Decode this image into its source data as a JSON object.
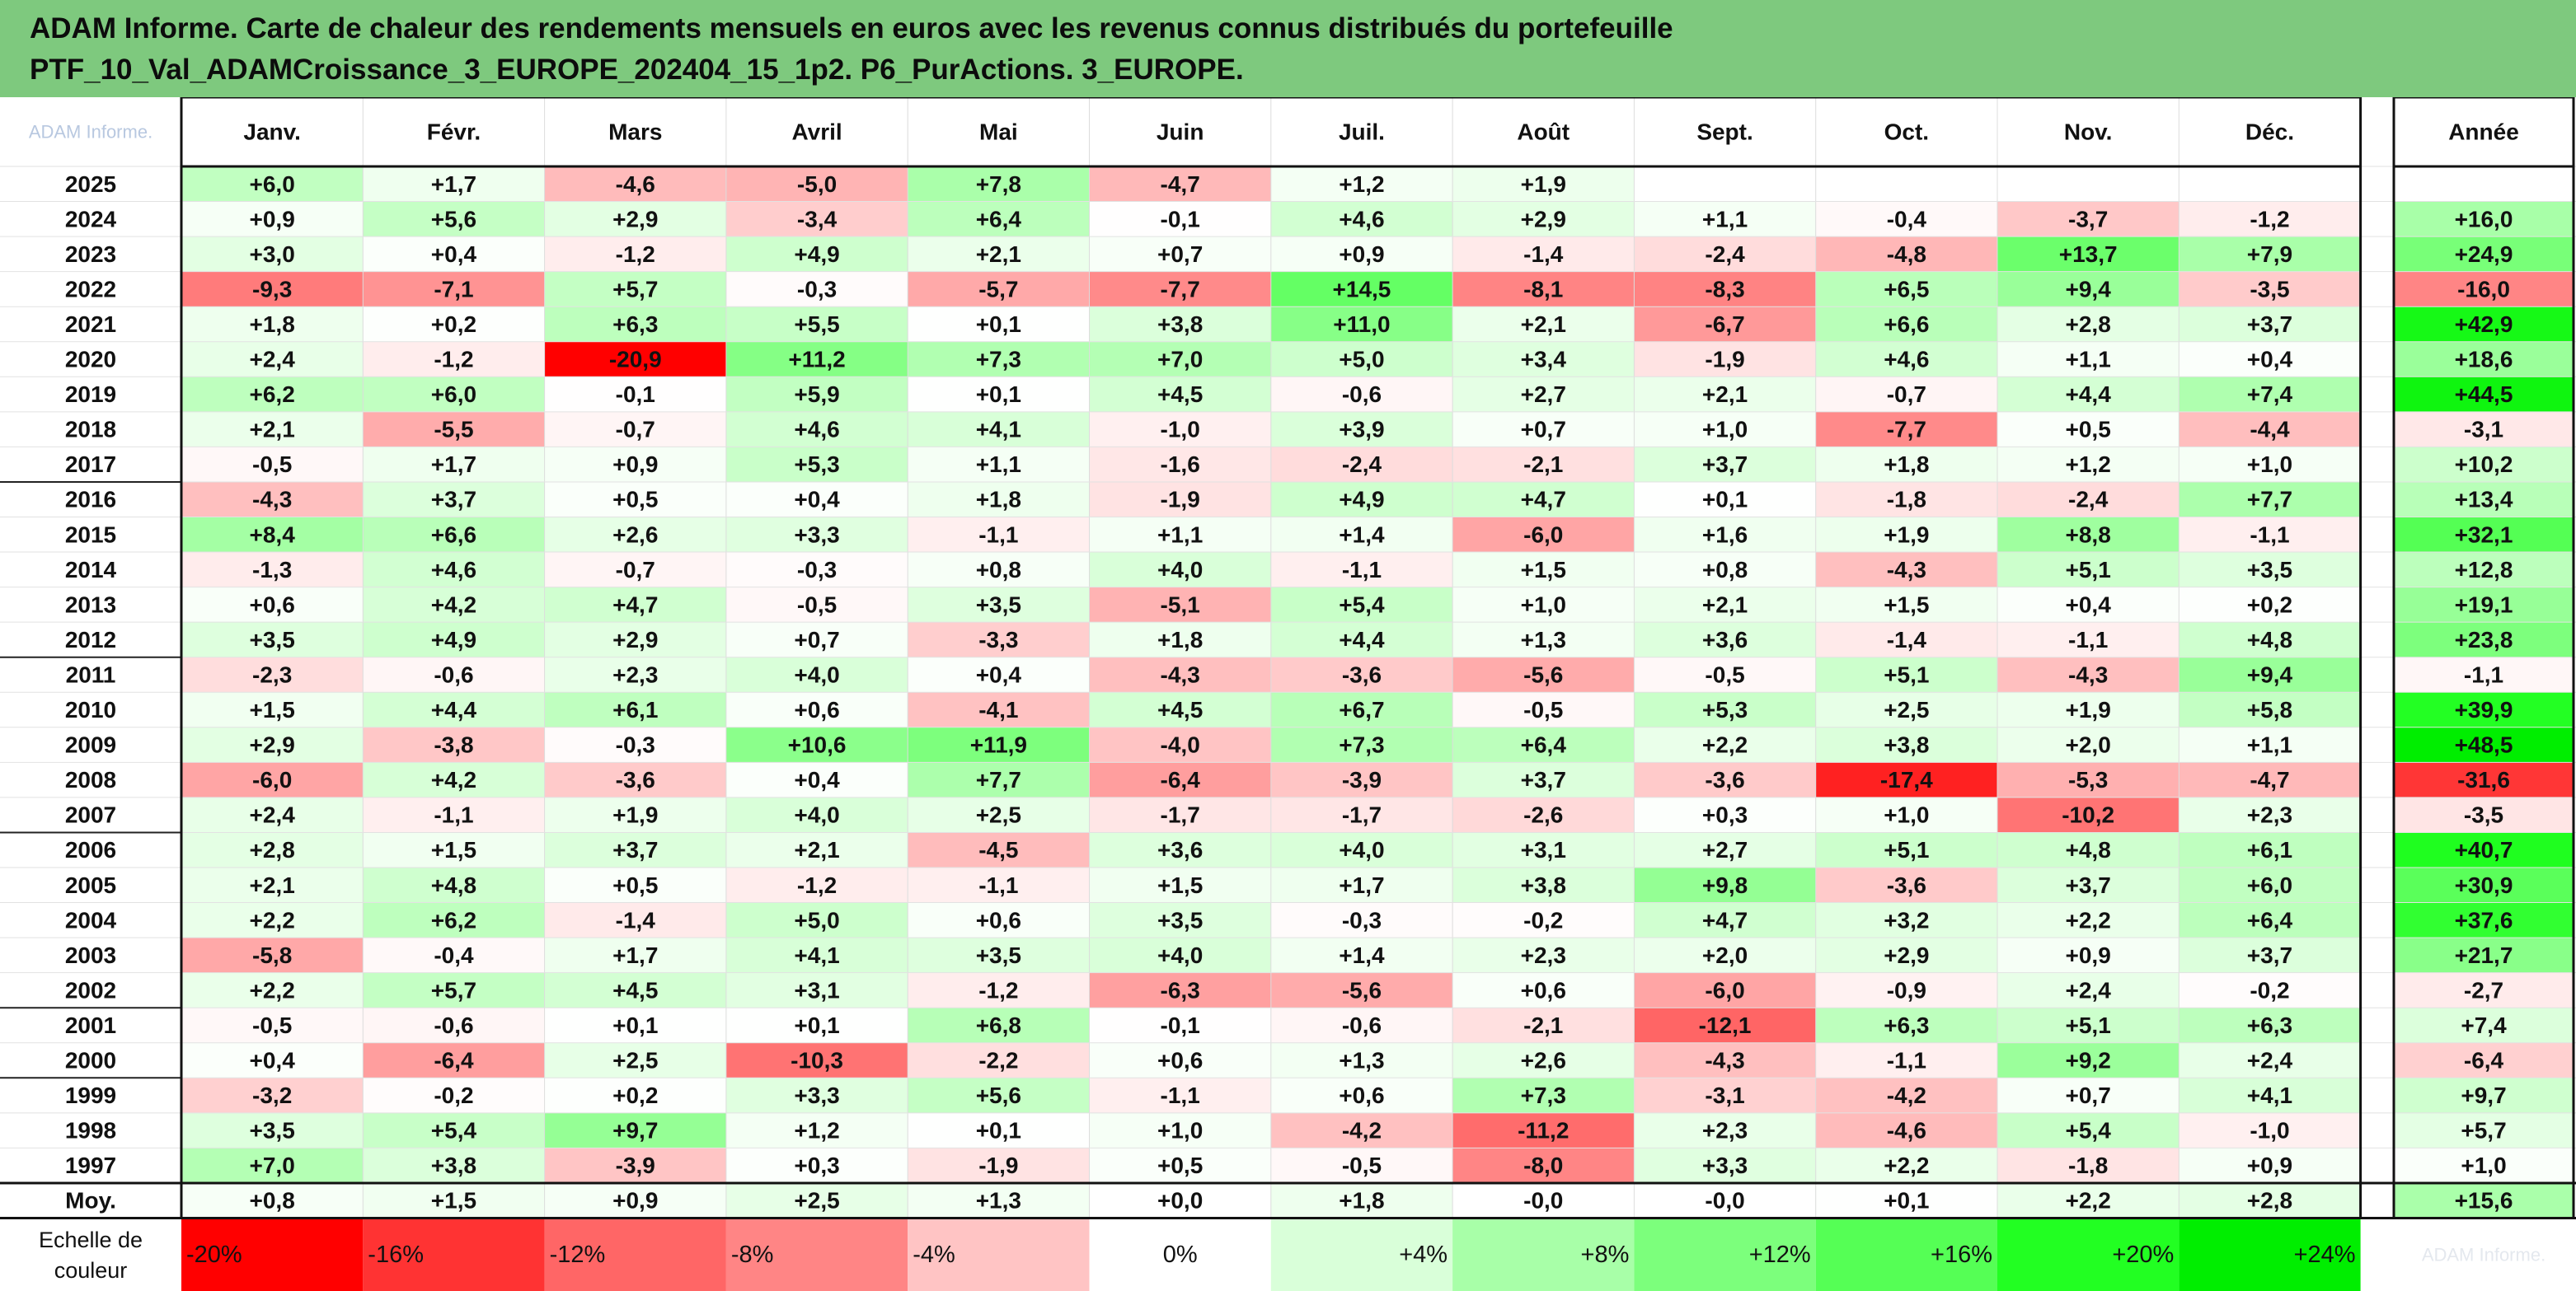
{
  "title": {
    "line1": "ADAM Informe. Carte de chaleur des rendements mensuels en euros avec les revenus connus distribués du portefeuille",
    "line2": "PTF_10_Val_ADAMCroissance_3_EUROPE_202404_15_1p2. P6_PurActions. 3_EUROPE."
  },
  "colors": {
    "banner": "#7ec97e",
    "scale": {
      "-20": "#ff0000",
      "-16": "#ff3333",
      "-12": "#ff6666",
      "-8": "#ff8585",
      "-4": "#ffc4c4",
      "0": "#ffffff",
      "4": "#d9ffd9",
      "8": "#a8ffa8",
      "12": "#7cff7c",
      "16": "#55ff55",
      "20": "#22ff22",
      "24": "#00ee00"
    }
  },
  "chart_data": {
    "type": "heatmap",
    "corner_label": "ADAM Informe.",
    "columns": [
      "Janv.",
      "Févr.",
      "Mars",
      "Avril",
      "Mai",
      "Juin",
      "Juil.",
      "Août",
      "Sept.",
      "Oct.",
      "Nov.",
      "Déc."
    ],
    "annual_label": "Année",
    "rows": [
      {
        "year": "2025",
        "months": [
          "+6,0",
          "+1,7",
          "-4,6",
          "-5,0",
          "+7,8",
          "-4,7",
          "+1,2",
          "+1,9",
          "",
          "",
          "",
          ""
        ],
        "annual": ""
      },
      {
        "year": "2024",
        "months": [
          "+0,9",
          "+5,6",
          "+2,9",
          "-3,4",
          "+6,4",
          "-0,1",
          "+4,6",
          "+2,9",
          "+1,1",
          "-0,4",
          "-3,7",
          "-1,2"
        ],
        "annual": "+16,0"
      },
      {
        "year": "2023",
        "months": [
          "+3,0",
          "+0,4",
          "-1,2",
          "+4,9",
          "+2,1",
          "+0,7",
          "+0,9",
          "-1,4",
          "-2,4",
          "-4,8",
          "+13,7",
          "+7,9"
        ],
        "annual": "+24,9"
      },
      {
        "year": "2022",
        "months": [
          "-9,3",
          "-7,1",
          "+5,7",
          "-0,3",
          "-5,7",
          "-7,7",
          "+14,5",
          "-8,1",
          "-8,3",
          "+6,5",
          "+9,4",
          "-3,5"
        ],
        "annual": "-16,0"
      },
      {
        "year": "2021",
        "months": [
          "+1,8",
          "+0,2",
          "+6,3",
          "+5,5",
          "+0,1",
          "+3,8",
          "+11,0",
          "+2,1",
          "-6,7",
          "+6,6",
          "+2,8",
          "+3,7"
        ],
        "annual": "+42,9"
      },
      {
        "year": "2020",
        "months": [
          "+2,4",
          "-1,2",
          "-20,9",
          "+11,2",
          "+7,3",
          "+7,0",
          "+5,0",
          "+3,4",
          "-1,9",
          "+4,6",
          "+1,1",
          "+0,4"
        ],
        "annual": "+18,6"
      },
      {
        "year": "2019",
        "months": [
          "+6,2",
          "+6,0",
          "-0,1",
          "+5,9",
          "+0,1",
          "+4,5",
          "-0,6",
          "+2,7",
          "+2,1",
          "-0,7",
          "+4,4",
          "+7,4"
        ],
        "annual": "+44,5"
      },
      {
        "year": "2018",
        "months": [
          "+2,1",
          "-5,5",
          "-0,7",
          "+4,6",
          "+4,1",
          "-1,0",
          "+3,9",
          "+0,7",
          "+1,0",
          "-7,7",
          "+0,5",
          "-4,4"
        ],
        "annual": "-3,1"
      },
      {
        "year": "2017",
        "months": [
          "-0,5",
          "+1,7",
          "+0,9",
          "+5,3",
          "+1,1",
          "-1,6",
          "-2,4",
          "-2,1",
          "+3,7",
          "+1,8",
          "+1,2",
          "+1,0"
        ],
        "annual": "+10,2"
      },
      {
        "year": "2016",
        "months": [
          "-4,3",
          "+3,7",
          "+0,5",
          "+0,4",
          "+1,8",
          "-1,9",
          "+4,9",
          "+4,7",
          "+0,1",
          "-1,8",
          "-2,4",
          "+7,7"
        ],
        "annual": "+13,4"
      },
      {
        "year": "2015",
        "months": [
          "+8,4",
          "+6,6",
          "+2,6",
          "+3,3",
          "-1,1",
          "+1,1",
          "+1,4",
          "-6,0",
          "+1,6",
          "+1,9",
          "+8,8",
          "-1,1"
        ],
        "annual": "+32,1"
      },
      {
        "year": "2014",
        "months": [
          "-1,3",
          "+4,6",
          "-0,7",
          "-0,3",
          "+0,8",
          "+4,0",
          "-1,1",
          "+1,5",
          "+0,8",
          "-4,3",
          "+5,1",
          "+3,5"
        ],
        "annual": "+12,8"
      },
      {
        "year": "2013",
        "months": [
          "+0,6",
          "+4,2",
          "+4,7",
          "-0,5",
          "+3,5",
          "-5,1",
          "+5,4",
          "+1,0",
          "+2,1",
          "+1,5",
          "+0,4",
          "+0,2"
        ],
        "annual": "+19,1"
      },
      {
        "year": "2012",
        "months": [
          "+3,5",
          "+4,9",
          "+2,9",
          "+0,7",
          "-3,3",
          "+1,8",
          "+4,4",
          "+1,3",
          "+3,6",
          "-1,4",
          "-1,1",
          "+4,8"
        ],
        "annual": "+23,8"
      },
      {
        "year": "2011",
        "months": [
          "-2,3",
          "-0,6",
          "+2,3",
          "+4,0",
          "+0,4",
          "-4,3",
          "-3,6",
          "-5,6",
          "-0,5",
          "+5,1",
          "-4,3",
          "+9,4"
        ],
        "annual": "-1,1"
      },
      {
        "year": "2010",
        "months": [
          "+1,5",
          "+4,4",
          "+6,1",
          "+0,6",
          "-4,1",
          "+4,5",
          "+6,7",
          "-0,5",
          "+5,3",
          "+2,5",
          "+1,9",
          "+5,8"
        ],
        "annual": "+39,9"
      },
      {
        "year": "2009",
        "months": [
          "+2,9",
          "-3,8",
          "-0,3",
          "+10,6",
          "+11,9",
          "-4,0",
          "+7,3",
          "+6,4",
          "+2,2",
          "+3,8",
          "+2,0",
          "+1,1"
        ],
        "annual": "+48,5"
      },
      {
        "year": "2008",
        "months": [
          "-6,0",
          "+4,2",
          "-3,6",
          "+0,4",
          "+7,7",
          "-6,4",
          "-3,9",
          "+3,7",
          "-3,6",
          "-17,4",
          "-5,3",
          "-4,7"
        ],
        "annual": "-31,6"
      },
      {
        "year": "2007",
        "months": [
          "+2,4",
          "-1,1",
          "+1,9",
          "+4,0",
          "+2,5",
          "-1,7",
          "-1,7",
          "-2,6",
          "+0,3",
          "+1,0",
          "-10,2",
          "+2,3"
        ],
        "annual": "-3,5"
      },
      {
        "year": "2006",
        "months": [
          "+2,8",
          "+1,5",
          "+3,7",
          "+2,1",
          "-4,5",
          "+3,6",
          "+4,0",
          "+3,1",
          "+2,7",
          "+5,1",
          "+4,8",
          "+6,1"
        ],
        "annual": "+40,7"
      },
      {
        "year": "2005",
        "months": [
          "+2,1",
          "+4,8",
          "+0,5",
          "-1,2",
          "-1,1",
          "+1,5",
          "+1,7",
          "+3,8",
          "+9,8",
          "-3,6",
          "+3,7",
          "+6,0"
        ],
        "annual": "+30,9"
      },
      {
        "year": "2004",
        "months": [
          "+2,2",
          "+6,2",
          "-1,4",
          "+5,0",
          "+0,6",
          "+3,5",
          "-0,3",
          "-0,2",
          "+4,7",
          "+3,2",
          "+2,2",
          "+6,4"
        ],
        "annual": "+37,6"
      },
      {
        "year": "2003",
        "months": [
          "-5,8",
          "-0,4",
          "+1,7",
          "+4,1",
          "+3,5",
          "+4,0",
          "+1,4",
          "+2,3",
          "+2,0",
          "+2,9",
          "+0,9",
          "+3,7"
        ],
        "annual": "+21,7"
      },
      {
        "year": "2002",
        "months": [
          "+2,2",
          "+5,7",
          "+4,5",
          "+3,1",
          "-1,2",
          "-6,3",
          "-5,6",
          "+0,6",
          "-6,0",
          "-0,9",
          "+2,4",
          "-0,2"
        ],
        "annual": "-2,7"
      },
      {
        "year": "2001",
        "months": [
          "-0,5",
          "-0,6",
          "+0,1",
          "+0,1",
          "+6,8",
          "-0,1",
          "-0,6",
          "-2,1",
          "-12,1",
          "+6,3",
          "+5,1",
          "+6,3"
        ],
        "annual": "+7,4"
      },
      {
        "year": "2000",
        "months": [
          "+0,4",
          "-6,4",
          "+2,5",
          "-10,3",
          "-2,2",
          "+0,6",
          "+1,3",
          "+2,6",
          "-4,3",
          "-1,1",
          "+9,2",
          "+2,4"
        ],
        "annual": "-6,4"
      },
      {
        "year": "1999",
        "months": [
          "-3,2",
          "-0,2",
          "+0,2",
          "+3,3",
          "+5,6",
          "-1,1",
          "+0,6",
          "+7,3",
          "-3,1",
          "-4,2",
          "+0,7",
          "+4,1"
        ],
        "annual": "+9,7"
      },
      {
        "year": "1998",
        "months": [
          "+3,5",
          "+5,4",
          "+9,7",
          "+1,2",
          "+0,1",
          "+1,0",
          "-4,2",
          "-11,2",
          "+2,3",
          "-4,6",
          "+5,4",
          "-1,0"
        ],
        "annual": "+5,7"
      },
      {
        "year": "1997",
        "months": [
          "+7,0",
          "+3,8",
          "-3,9",
          "+0,3",
          "-1,9",
          "+0,5",
          "-0,5",
          "-8,0",
          "+3,3",
          "+2,2",
          "-1,8",
          "+0,9"
        ],
        "annual": "+1,0"
      }
    ],
    "average": {
      "label": "Moy.",
      "months": [
        "+0,8",
        "+1,5",
        "+0,9",
        "+2,5",
        "+1,3",
        "+0,0",
        "+1,8",
        "-0,0",
        "-0,0",
        "+0,1",
        "+2,2",
        "+2,8"
      ],
      "annual": "+15,6"
    },
    "legend": {
      "label_line1": "Echelle de",
      "label_line2": "couleur",
      "items": [
        {
          "label": "-20%",
          "value": -20
        },
        {
          "label": "-16%",
          "value": -16
        },
        {
          "label": "-12%",
          "value": -12
        },
        {
          "label": "-8%",
          "value": -8
        },
        {
          "label": "-4%",
          "value": -4
        },
        {
          "label": "0%",
          "value": 0
        },
        {
          "label": "+4%",
          "value": 4
        },
        {
          "label": "+8%",
          "value": 8
        },
        {
          "label": "+12%",
          "value": 12
        },
        {
          "label": "+16%",
          "value": 16
        },
        {
          "label": "+20%",
          "value": 20
        },
        {
          "label": "+24%",
          "value": 24
        }
      ],
      "footer_text": "ADAM Informe."
    }
  }
}
